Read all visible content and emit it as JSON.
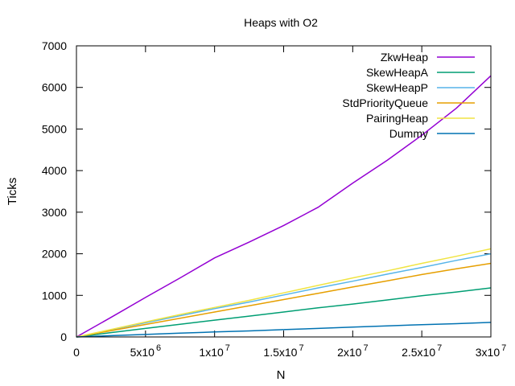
{
  "chart_data": {
    "type": "line",
    "title": "Heaps with O2",
    "xlabel": "N",
    "ylabel": "Ticks",
    "xlim": [
      0,
      30000000
    ],
    "ylim": [
      0,
      7000
    ],
    "grid": false,
    "legend_position": "top-right",
    "x_ticks": [
      {
        "value": 0,
        "base": "0",
        "exp": ""
      },
      {
        "value": 5000000,
        "base": "5x10",
        "exp": "6"
      },
      {
        "value": 10000000,
        "base": "1x10",
        "exp": "7"
      },
      {
        "value": 15000000,
        "base": "1.5x10",
        "exp": "7"
      },
      {
        "value": 20000000,
        "base": "2x10",
        "exp": "7"
      },
      {
        "value": 25000000,
        "base": "2.5x10",
        "exp": "7"
      },
      {
        "value": 30000000,
        "base": "3x10",
        "exp": "7"
      }
    ],
    "y_ticks": [
      {
        "value": 0,
        "label": "0"
      },
      {
        "value": 1000,
        "label": "1000"
      },
      {
        "value": 2000,
        "label": "2000"
      },
      {
        "value": 3000,
        "label": "3000"
      },
      {
        "value": 4000,
        "label": "4000"
      },
      {
        "value": 5000,
        "label": "5000"
      },
      {
        "value": 6000,
        "label": "6000"
      },
      {
        "value": 7000,
        "label": "7000"
      }
    ],
    "x": [
      0,
      2500000,
      5000000,
      7500000,
      10000000,
      12500000,
      15000000,
      17500000,
      20000000,
      22500000,
      25000000,
      27500000,
      30000000
    ],
    "series": [
      {
        "name": "ZkwHeap",
        "color": "#9400d3",
        "values": [
          0,
          470,
          950,
          1420,
          1900,
          2280,
          2680,
          3120,
          3700,
          4250,
          4850,
          5500,
          6280
        ]
      },
      {
        "name": "SkewHeapA",
        "color": "#009e73",
        "values": [
          0,
          105,
          205,
          305,
          405,
          500,
          600,
          700,
          790,
          890,
          990,
          1080,
          1180
        ]
      },
      {
        "name": "SkewHeapP",
        "color": "#56b4e9",
        "values": [
          0,
          170,
          340,
          510,
          680,
          840,
          1010,
          1180,
          1340,
          1510,
          1670,
          1840,
          2000
        ]
      },
      {
        "name": "StdPriorityQueue",
        "color": "#e69f00",
        "values": [
          0,
          150,
          300,
          450,
          600,
          750,
          900,
          1050,
          1200,
          1350,
          1500,
          1640,
          1770
        ]
      },
      {
        "name": "PairingHeap",
        "color": "#f0e442",
        "values": [
          0,
          180,
          360,
          540,
          710,
          880,
          1060,
          1240,
          1420,
          1590,
          1770,
          1940,
          2120
        ]
      },
      {
        "name": "Dummy",
        "color": "#0072b2",
        "values": [
          0,
          30,
          60,
          90,
          120,
          145,
          175,
          205,
          235,
          265,
          295,
          320,
          350
        ]
      }
    ]
  }
}
